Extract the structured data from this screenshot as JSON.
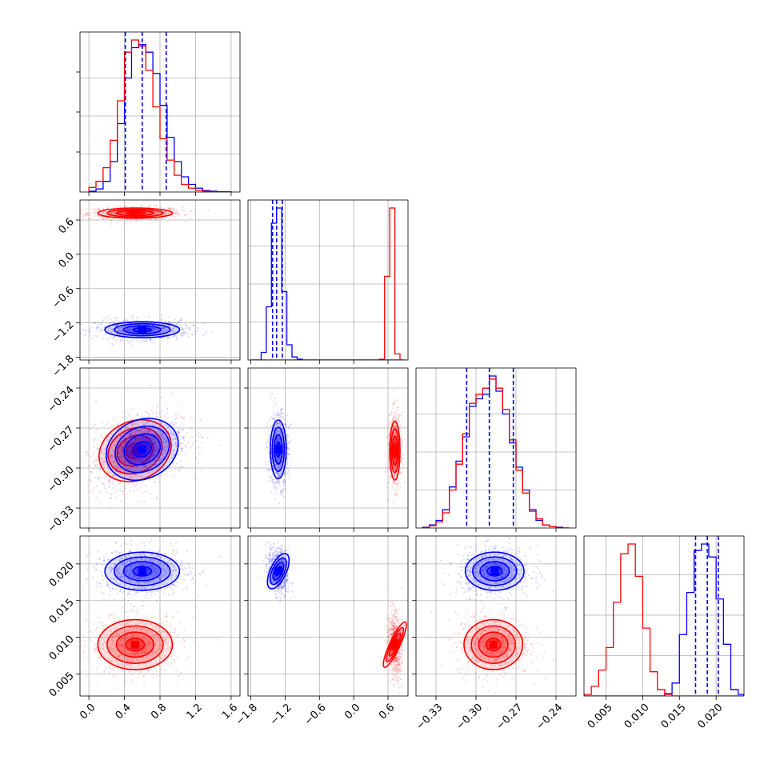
{
  "chart_data": {
    "type": "scatter",
    "kind": "corner-plot",
    "title": "",
    "grid": true,
    "series": [
      {
        "color": "#ff0000",
        "means": [
          0.52,
          0.72,
          -0.287,
          0.009
        ],
        "sds": [
          0.21,
          0.045,
          0.011,
          0.0017
        ]
      },
      {
        "color": "#0000ff",
        "means": [
          0.6,
          -1.32,
          -0.286,
          0.019
        ],
        "sds": [
          0.21,
          0.07,
          0.011,
          0.0013
        ]
      }
    ],
    "parameters": [
      {
        "range": [
          -0.1,
          1.7
        ],
        "ticks": [
          0.0,
          0.4,
          0.8,
          1.2,
          1.6
        ],
        "tick_labels": [
          "0.0",
          "0.4",
          "0.8",
          "1.2",
          "1.6"
        ]
      },
      {
        "range": [
          -1.85,
          0.95
        ],
        "ticks": [
          -1.8,
          -1.2,
          -0.6,
          0.0,
          0.6
        ],
        "tick_labels": [
          "−1.8",
          "−1.2",
          "−0.6",
          "0.0",
          "0.6"
        ]
      },
      {
        "range": [
          -0.345,
          -0.225
        ],
        "ticks": [
          -0.33,
          -0.3,
          -0.27,
          -0.24
        ],
        "tick_labels": [
          "−0.33",
          "−0.30",
          "−0.27",
          "−0.24"
        ]
      },
      {
        "range": [
          0.002,
          0.0238
        ],
        "ticks": [
          0.005,
          0.01,
          0.015,
          0.02
        ],
        "tick_labels": [
          "0.005",
          "0.010",
          "0.015",
          "0.020"
        ]
      }
    ],
    "quantile_lines": [
      [
        0.41,
        0.6,
        0.87
      ],
      [
        -1.42,
        -1.35,
        -1.25
      ],
      [
        -0.307,
        -0.29,
        -0.272
      ],
      [
        0.0172,
        0.0188,
        0.0203
      ]
    ],
    "histograms": [
      {
        "blue": {
          "edges": [
            0.0,
            0.08,
            0.16,
            0.24,
            0.32,
            0.4,
            0.48,
            0.56,
            0.64,
            0.72,
            0.8,
            0.88,
            0.96,
            1.04,
            1.12,
            1.2,
            1.28,
            1.36,
            1.44,
            1.52,
            1.6
          ],
          "counts": [
            0.5,
            2,
            7,
            20,
            45,
            75,
            95,
            97,
            92,
            78,
            57,
            36,
            20,
            10,
            5,
            2.5,
            1,
            0.5,
            0.2,
            0.1
          ]
        },
        "red": {
          "edges": [
            0.0,
            0.08,
            0.16,
            0.24,
            0.32,
            0.4,
            0.48,
            0.56,
            0.64,
            0.72,
            0.8,
            0.88,
            0.96,
            1.04,
            1.12,
            1.2,
            1.28,
            1.36,
            1.44,
            1.52,
            1.6
          ],
          "counts": [
            3,
            7,
            16,
            34,
            60,
            92,
            100,
            96,
            80,
            56,
            35,
            21,
            11,
            5,
            2.5,
            1,
            0.5,
            0.2,
            0.1,
            0.05
          ]
        }
      },
      {
        "blue": {
          "edges": [
            -1.8,
            -1.71,
            -1.62,
            -1.53,
            -1.44,
            -1.35,
            -1.26,
            -1.17,
            -1.08,
            -0.99,
            -0.9,
            -0.81,
            -0.72,
            -0.63,
            -0.54,
            -0.45,
            -0.36,
            -0.27,
            -0.18,
            -0.09,
            0.0,
            0.09,
            0.18,
            0.27,
            0.36,
            0.45,
            0.54,
            0.63,
            0.72,
            0.81,
            0.9
          ],
          "counts": [
            0,
            0,
            5,
            35,
            90,
            100,
            45,
            10,
            2,
            0.5,
            0,
            0,
            0,
            0,
            0,
            0,
            0,
            0,
            0,
            0,
            0,
            0,
            0,
            0,
            0,
            0,
            0,
            0,
            0,
            0
          ]
        },
        "red": {
          "edges": [
            -1.8,
            -1.71,
            -1.62,
            -1.53,
            -1.44,
            -1.35,
            -1.26,
            -1.17,
            -1.08,
            -0.99,
            -0.9,
            -0.81,
            -0.72,
            -0.63,
            -0.54,
            -0.45,
            -0.36,
            -0.27,
            -0.18,
            -0.09,
            0.0,
            0.09,
            0.18,
            0.27,
            0.36,
            0.45,
            0.54,
            0.63,
            0.72,
            0.81,
            0.9
          ],
          "counts": [
            0,
            0,
            0,
            0,
            0,
            0,
            0,
            0,
            0,
            0,
            0,
            0,
            0,
            0,
            0,
            0,
            0,
            0,
            0,
            0,
            0,
            0,
            0,
            0,
            0,
            0.5,
            55,
            100,
            4,
            0
          ]
        }
      },
      {
        "blue": {
          "edges": [
            -0.34,
            -0.335,
            -0.33,
            -0.325,
            -0.32,
            -0.315,
            -0.31,
            -0.305,
            -0.3,
            -0.295,
            -0.29,
            -0.285,
            -0.28,
            -0.275,
            -0.27,
            -0.265,
            -0.26,
            -0.255,
            -0.25,
            -0.245,
            -0.24,
            -0.235,
            -0.23
          ],
          "counts": [
            0.5,
            2,
            5,
            12,
            27,
            44,
            60,
            80,
            85,
            88,
            100,
            90,
            75,
            56,
            40,
            25,
            12,
            5,
            2,
            1,
            0.5,
            0
          ]
        },
        "red": {
          "edges": [
            -0.34,
            -0.335,
            -0.33,
            -0.325,
            -0.32,
            -0.315,
            -0.31,
            -0.305,
            -0.3,
            -0.295,
            -0.29,
            -0.285,
            -0.28,
            -0.275,
            -0.27,
            -0.265,
            -0.26,
            -0.255,
            -0.25,
            -0.245,
            -0.24,
            -0.235,
            -0.23
          ],
          "counts": [
            0.3,
            1.5,
            4,
            10,
            25,
            42,
            62,
            82,
            88,
            92,
            98,
            92,
            78,
            58,
            38,
            23,
            11,
            6,
            2,
            1,
            0.3,
            0
          ]
        }
      },
      {
        "blue": {
          "edges": [
            0.002,
            0.003,
            0.004,
            0.005,
            0.006,
            0.007,
            0.008,
            0.009,
            0.01,
            0.011,
            0.012,
            0.013,
            0.014,
            0.015,
            0.016,
            0.017,
            0.018,
            0.019,
            0.02,
            0.021,
            0.022,
            0.023,
            0.0238
          ],
          "counts": [
            0,
            0,
            0,
            0,
            0,
            0,
            0,
            0,
            0,
            0,
            0,
            1.5,
            8,
            38,
            64,
            90,
            94,
            86,
            60,
            32,
            4,
            1
          ]
        },
        "red": {
          "edges": [
            0.002,
            0.003,
            0.004,
            0.005,
            0.006,
            0.007,
            0.008,
            0.009,
            0.01,
            0.011,
            0.012,
            0.013,
            0.014,
            0.015,
            0.016,
            0.017,
            0.018,
            0.019,
            0.02,
            0.021,
            0.022,
            0.023,
            0.0238
          ],
          "counts": [
            1,
            6,
            16,
            30,
            58,
            88,
            94,
            74,
            42,
            15,
            4,
            1,
            0,
            0,
            0,
            0,
            0,
            0,
            0,
            0,
            0,
            0
          ]
        }
      }
    ],
    "contour_levels_sigma": [
      0.5,
      1.0,
      1.5,
      2.0
    ]
  }
}
